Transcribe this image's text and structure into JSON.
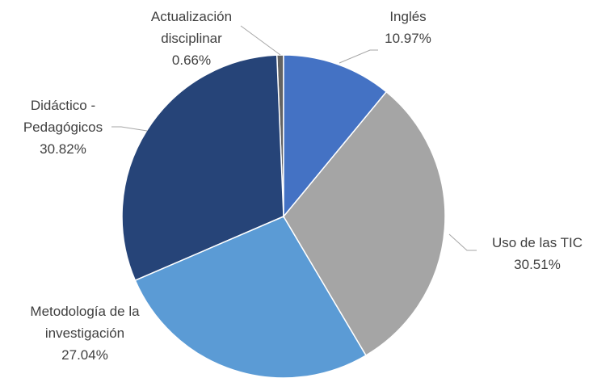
{
  "chart_data": {
    "type": "pie",
    "categories": [
      "Inglés",
      "Uso de las TIC",
      "Metodología de la investigación",
      "Didáctico - Pedagógicos",
      "Actualización disciplinar"
    ],
    "values": [
      10.97,
      30.51,
      27.04,
      30.82,
      0.66
    ],
    "value_labels": [
      "10.97%",
      "30.51%",
      "27.04%",
      "30.82%",
      "0.66%"
    ],
    "colors": [
      "#4472c4",
      "#a5a5a5",
      "#5b9bd5",
      "#264478",
      "#636363"
    ]
  }
}
